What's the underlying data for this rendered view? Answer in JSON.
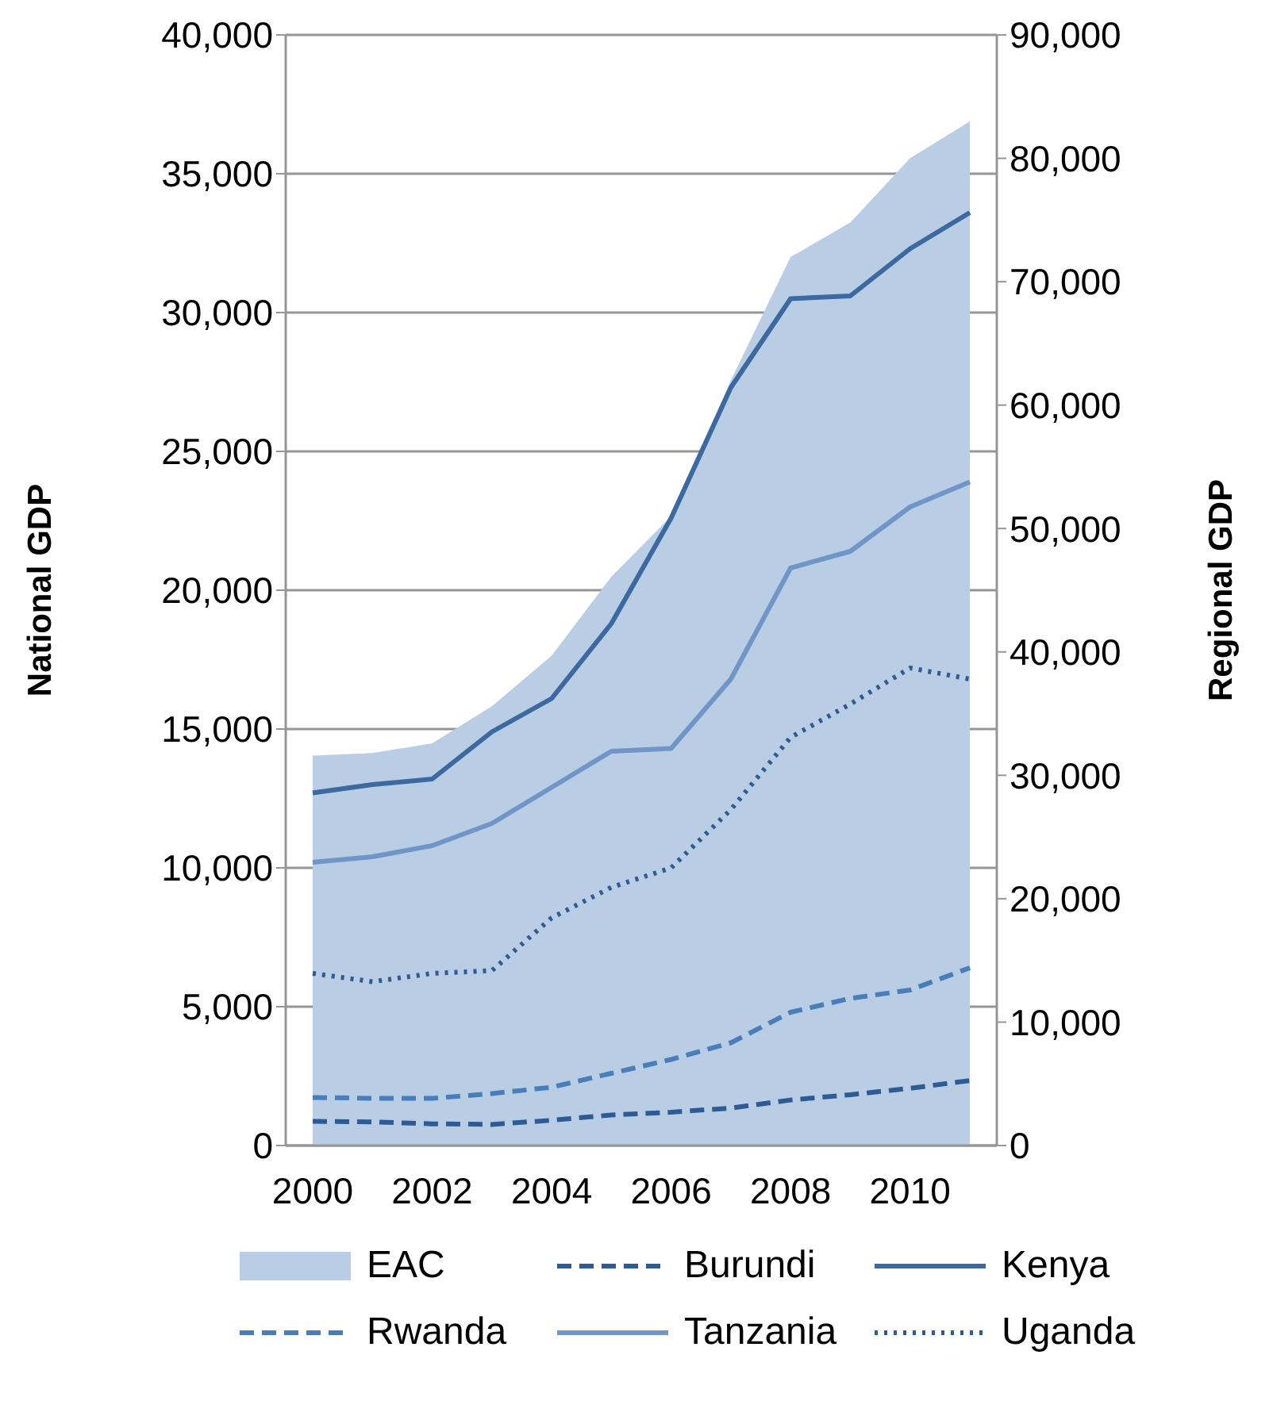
{
  "chart_data": {
    "type": "line",
    "categories": [
      "2000",
      null,
      "2002",
      null,
      "2004",
      null,
      "2006",
      null,
      "2008",
      null,
      "2010",
      null
    ],
    "ylabel": "National GDP",
    "y2label": "Regional GDP",
    "ylim": [
      0,
      40000
    ],
    "yticks": [
      {
        "value": 0,
        "label": "0"
      },
      {
        "value": 5000,
        "label": "5,000"
      },
      {
        "value": 10000,
        "label": "10,000"
      },
      {
        "value": 15000,
        "label": "15,000"
      },
      {
        "value": 20000,
        "label": "20,000"
      },
      {
        "value": 25000,
        "label": "25,000"
      },
      {
        "value": 30000,
        "label": "30,000"
      },
      {
        "value": 35000,
        "label": "35,000"
      },
      {
        "value": 40000,
        "label": "40,000"
      }
    ],
    "y2lim": [
      0,
      90000
    ],
    "y2ticks": [
      {
        "value": 0,
        "label": "0"
      },
      {
        "value": 10000,
        "label": "10,000"
      },
      {
        "value": 20000,
        "label": "20,000"
      },
      {
        "value": 30000,
        "label": "30,000"
      },
      {
        "value": 40000,
        "label": "40,000"
      },
      {
        "value": 50000,
        "label": "50,000"
      },
      {
        "value": 60000,
        "label": "60,000"
      },
      {
        "value": 70000,
        "label": "70,000"
      },
      {
        "value": 80000,
        "label": "80,000"
      },
      {
        "value": 90000,
        "label": "90,000"
      }
    ],
    "grid": "y",
    "legend": "bottom",
    "marker": "none",
    "series": [
      {
        "name": "EAC",
        "type": "area",
        "axis": "y2",
        "color": "#b9cde5",
        "values": [
          31600,
          31800,
          32600,
          35600,
          39700,
          46100,
          51000,
          62000,
          72000,
          74800,
          80000,
          83000
        ]
      },
      {
        "name": "Burundi",
        "color": "#2e5b95",
        "line_style": "dashed",
        "values": [
          870,
          850,
          780,
          760,
          910,
          1100,
          1200,
          1350,
          1640,
          1830,
          2060,
          2340
        ]
      },
      {
        "name": "Kenya",
        "color": "#3c69a0",
        "line_style": "solid",
        "values": [
          12700,
          13000,
          13200,
          14900,
          16100,
          18800,
          22600,
          27300,
          30500,
          30600,
          32300,
          33600
        ]
      },
      {
        "name": "Rwanda",
        "color": "#4a7ebb",
        "line_style": "dashed",
        "values": [
          1730,
          1700,
          1700,
          1870,
          2100,
          2600,
          3100,
          3700,
          4800,
          5300,
          5600,
          6400
        ]
      },
      {
        "name": "Tanzania",
        "color": "#7096c8",
        "line_style": "solid",
        "values": [
          10200,
          10400,
          10800,
          11600,
          12900,
          14200,
          14300,
          16800,
          20800,
          21400,
          23000,
          23900
        ]
      },
      {
        "name": "Uganda",
        "color": "#2e5b95",
        "line_style": "dotted",
        "values": [
          6200,
          5900,
          6200,
          6300,
          8200,
          9300,
          10000,
          12100,
          14700,
          15900,
          17200,
          16800
        ]
      }
    ]
  }
}
